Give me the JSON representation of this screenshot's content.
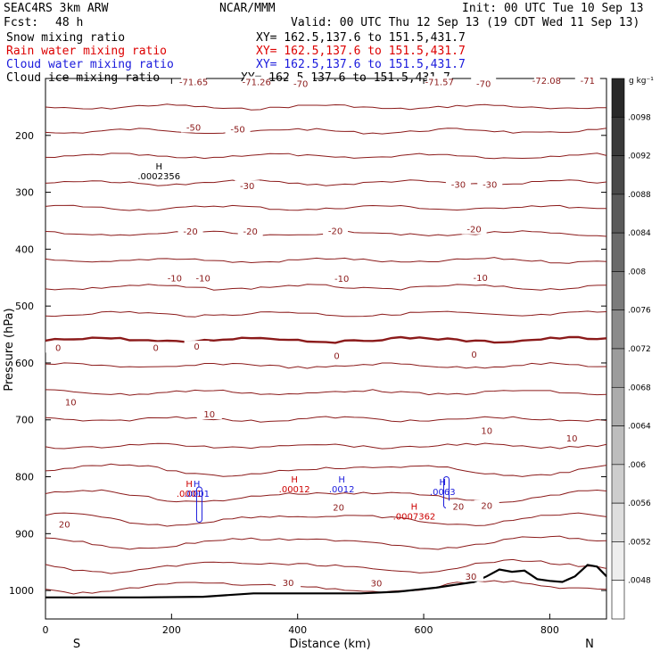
{
  "header": {
    "model": "SEAC4RS  3km ARW",
    "center": "NCAR/MMM",
    "init": "Init: 00 UTC Tue 10 Sep 13",
    "fcst_label": "Fcst:",
    "fcst_value": "48 h",
    "valid": "Valid: 00 UTC Thu 12 Sep 13 (19 CDT Wed 11 Sep 13)"
  },
  "fields": [
    {
      "name": "Snow mixing ratio",
      "xy": "XY= 162.5,137.6 to 151.5,431.7",
      "color": "#000000"
    },
    {
      "name": "Rain water mixing ratio",
      "xy": "XY= 162.5,137.6 to 151.5,431.7",
      "color": "#dd0000"
    },
    {
      "name": "Cloud water mixing ratio",
      "xy": "XY= 162.5,137.6 to 151.5,431.7",
      "color": "#1a1adc"
    },
    {
      "name": "Cloud ice mixing ratio",
      "xy": "XY= 162.5,137.6 to 151.5,431.7",
      "color": "#000000"
    }
  ],
  "colors": {
    "temperature": "#8b1a1a",
    "terrain": "#000000",
    "rain": "#cc0000",
    "cloud_water": "#1a1adc"
  },
  "chart_data": {
    "type": "cross-section",
    "xlabel": "Distance (km)",
    "ylabel": "Pressure (hPa)",
    "xlim": [
      0,
      890
    ],
    "ylim": [
      1050,
      100
    ],
    "x_ticks": [
      "0",
      "200",
      "400",
      "600",
      "800"
    ],
    "y_ticks": [
      "200",
      "300",
      "400",
      "500",
      "600",
      "700",
      "800",
      "900",
      "1000"
    ],
    "x_ends": {
      "left": "S",
      "right": "N"
    },
    "colorbar": {
      "unit": "g kg⁻¹",
      "labels": [
        ".0098",
        ".0092",
        ".0088",
        ".0084",
        ".008",
        ".0076",
        ".0072",
        ".0068",
        ".0064",
        ".006",
        ".0056",
        ".0052",
        ".0048"
      ]
    },
    "isotherm_labels": [
      {
        "text": "-71.65",
        "x": 235,
        "p": 107
      },
      {
        "text": "-71.26",
        "x": 335,
        "p": 107
      },
      {
        "text": "-70",
        "x": 405,
        "p": 110
      },
      {
        "text": "-71.57",
        "x": 625,
        "p": 107
      },
      {
        "text": "-70",
        "x": 695,
        "p": 110
      },
      {
        "text": "-72.08",
        "x": 795,
        "p": 105
      },
      {
        "text": "-71",
        "x": 860,
        "p": 105
      },
      {
        "text": "-50",
        "x": 235,
        "p": 187
      },
      {
        "text": "-50",
        "x": 305,
        "p": 190
      },
      {
        "text": "-30",
        "x": 320,
        "p": 290
      },
      {
        "text": "-30",
        "x": 655,
        "p": 287
      },
      {
        "text": "-30",
        "x": 705,
        "p": 287
      },
      {
        "text": "-20",
        "x": 230,
        "p": 370
      },
      {
        "text": "-20",
        "x": 325,
        "p": 370
      },
      {
        "text": "-20",
        "x": 460,
        "p": 369
      },
      {
        "text": "-20",
        "x": 680,
        "p": 366
      },
      {
        "text": "-10",
        "x": 205,
        "p": 452
      },
      {
        "text": "-10",
        "x": 250,
        "p": 452
      },
      {
        "text": "-10",
        "x": 470,
        "p": 453
      },
      {
        "text": "-10",
        "x": 690,
        "p": 451
      },
      {
        "text": "0",
        "x": 20,
        "p": 574
      },
      {
        "text": "0",
        "x": 175,
        "p": 574
      },
      {
        "text": "0",
        "x": 240,
        "p": 572
      },
      {
        "text": "0",
        "x": 462,
        "p": 588
      },
      {
        "text": "0",
        "x": 680,
        "p": 586
      },
      {
        "text": "10",
        "x": 40,
        "p": 670
      },
      {
        "text": "10",
        "x": 260,
        "p": 691
      },
      {
        "text": "10",
        "x": 700,
        "p": 720
      },
      {
        "text": "10",
        "x": 835,
        "p": 733
      },
      {
        "text": "20",
        "x": 30,
        "p": 885
      },
      {
        "text": "20",
        "x": 465,
        "p": 855
      },
      {
        "text": "20",
        "x": 655,
        "p": 853
      },
      {
        "text": "20",
        "x": 700,
        "p": 852
      },
      {
        "text": "30",
        "x": 385,
        "p": 987
      },
      {
        "text": "30",
        "x": 525,
        "p": 988
      },
      {
        "text": "30",
        "x": 675,
        "p": 976
      }
    ],
    "extrema": [
      {
        "kind": "H",
        "value": ".0002356",
        "x": 180,
        "p": 260,
        "color": "#000000"
      },
      {
        "kind": "H",
        "value": ".0001",
        "x": 228,
        "p": 818,
        "color": "#cc0000"
      },
      {
        "kind": "H",
        "value": ".0001",
        "x": 240,
        "p": 818,
        "color": "#1a1adc"
      },
      {
        "kind": "H",
        "value": ".00012",
        "x": 395,
        "p": 810,
        "color": "#cc0000"
      },
      {
        "kind": "H",
        "value": ".0012",
        "x": 470,
        "p": 810,
        "color": "#1a1adc"
      },
      {
        "kind": "H",
        "value": ".0007362",
        "x": 585,
        "p": 858,
        "color": "#cc0000"
      },
      {
        "kind": "H",
        "value": ".0063",
        "x": 630,
        "p": 815,
        "color": "#1a1adc"
      }
    ]
  }
}
